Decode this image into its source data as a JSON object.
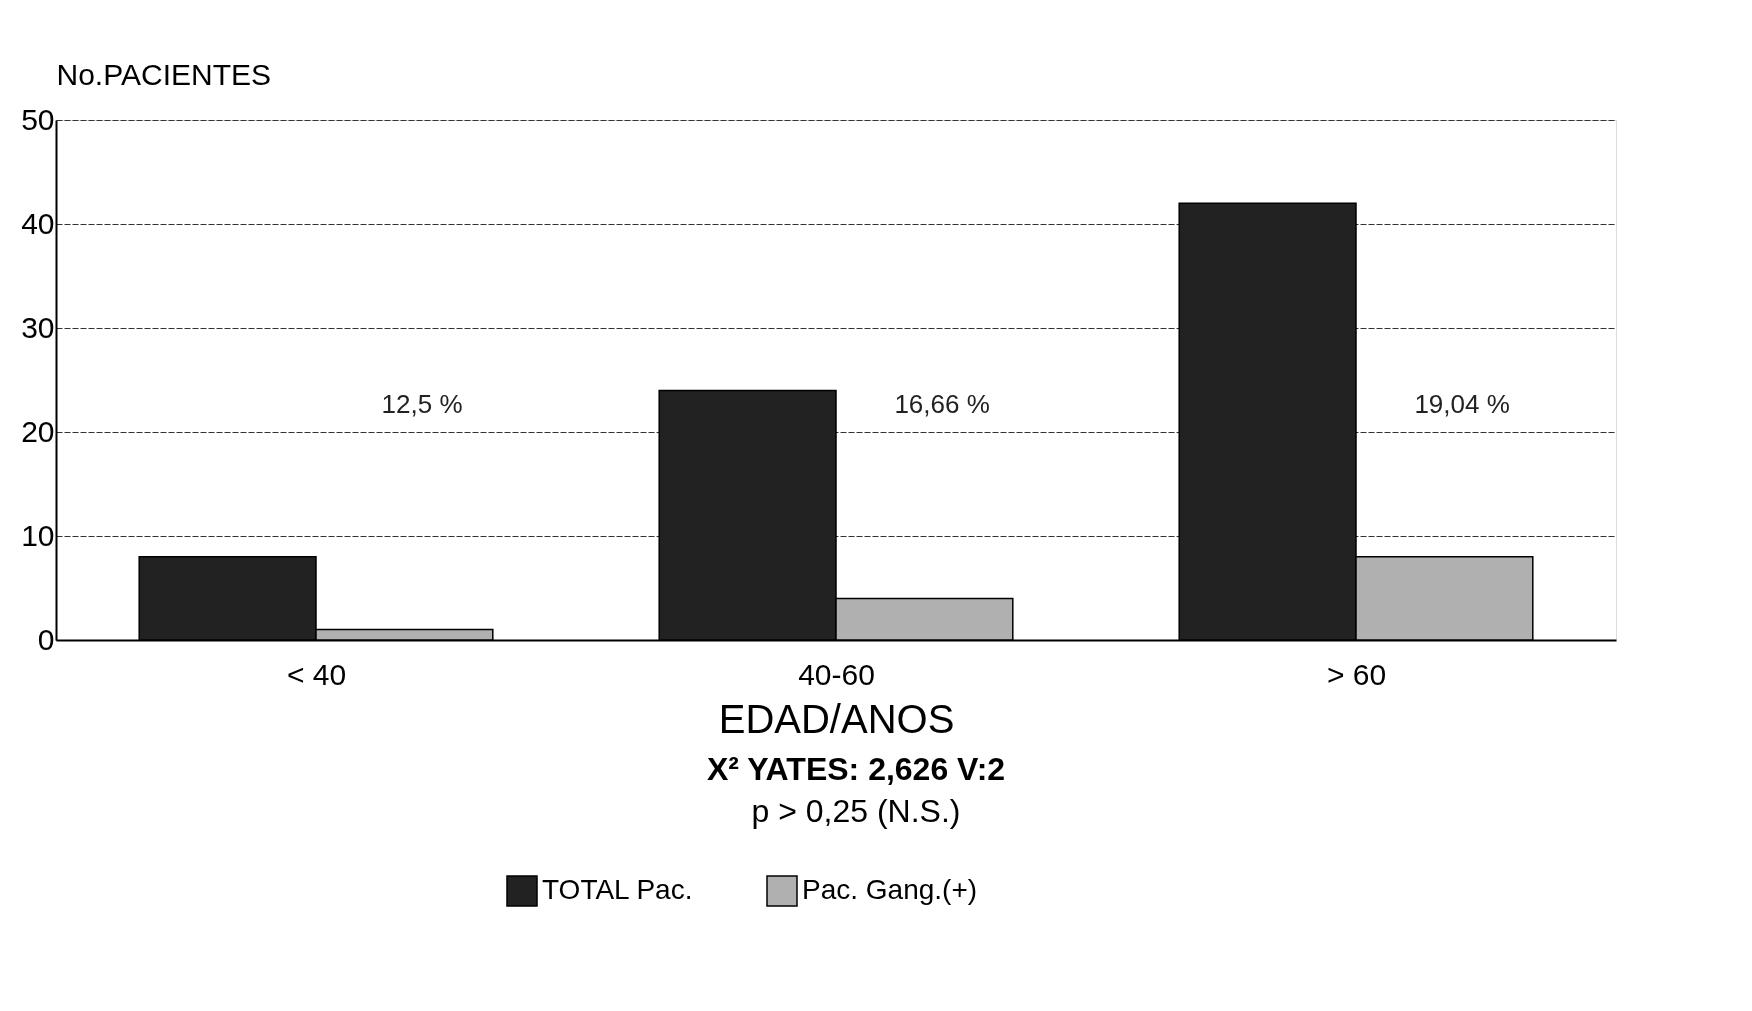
{
  "chart_data": {
    "type": "bar",
    "ylabel": "No.PACIENTES",
    "xlabel": "EDAD/ANOS",
    "categories": [
      "< 40",
      "40-60",
      "> 60"
    ],
    "series": [
      {
        "name": "TOTAL Pac.",
        "color": "#222222",
        "values": [
          8,
          24,
          42
        ]
      },
      {
        "name": "Pac. Gang.(+)",
        "color": "#b0b0b0",
        "values": [
          1,
          4,
          8
        ]
      }
    ],
    "ylim": [
      0,
      50
    ],
    "yticks": [
      0,
      10,
      20,
      30,
      40,
      50
    ],
    "grid": "y",
    "legend": "bottom",
    "annotations": [
      "12,5 %",
      "16,66 %",
      "19,04 %",
      "X² YATES: 2,626 V:2",
      "p > 0,25 (N.S.)"
    ]
  }
}
